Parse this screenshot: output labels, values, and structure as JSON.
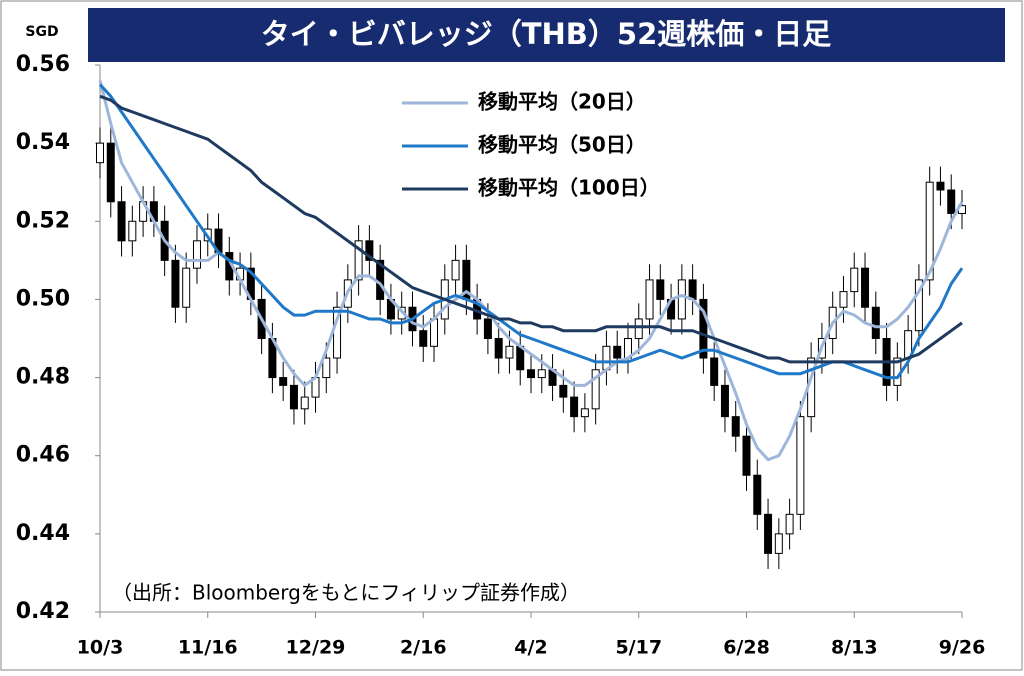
{
  "chart_data": {
    "type": "candlestick",
    "title": "タイ・ビバレッジ（THB）52週株価・日足",
    "ylabel": "SGD",
    "note": "（出所：Bloombergをもとにフィリップ証券作成）",
    "categories": [
      "10/3",
      null,
      null,
      null,
      null,
      null,
      null,
      null,
      null,
      null,
      "11/16",
      null,
      null,
      null,
      null,
      null,
      null,
      null,
      null,
      null,
      "12/29",
      null,
      null,
      null,
      null,
      null,
      null,
      null,
      null,
      null,
      "2/16",
      null,
      null,
      null,
      null,
      null,
      null,
      null,
      null,
      null,
      "4/2",
      null,
      null,
      null,
      null,
      null,
      null,
      null,
      null,
      null,
      "5/17",
      null,
      null,
      null,
      null,
      null,
      null,
      null,
      null,
      null,
      "6/28",
      null,
      null,
      null,
      null,
      null,
      null,
      null,
      null,
      null,
      "8/13",
      null,
      null,
      null,
      null,
      null,
      null,
      null,
      null,
      null,
      "9/26"
    ],
    "open": [
      0.535,
      0.54,
      0.525,
      0.515,
      0.52,
      0.525,
      0.52,
      0.51,
      0.498,
      0.508,
      0.515,
      0.518,
      0.512,
      0.505,
      0.508,
      0.5,
      0.49,
      0.48,
      0.478,
      0.472,
      0.475,
      0.48,
      0.485,
      0.498,
      0.505,
      0.515,
      0.51,
      0.5,
      0.495,
      0.498,
      0.492,
      0.488,
      0.495,
      0.505,
      0.51,
      0.5,
      0.495,
      0.49,
      0.485,
      0.488,
      0.482,
      0.48,
      0.482,
      0.478,
      0.475,
      0.47,
      0.472,
      0.482,
      0.488,
      0.485,
      0.49,
      0.495,
      0.505,
      0.5,
      0.495,
      0.505,
      0.5,
      0.485,
      0.478,
      0.47,
      0.465,
      0.455,
      0.445,
      0.435,
      0.44,
      0.445,
      0.47,
      0.485,
      0.49,
      0.498,
      0.502,
      0.508,
      0.498,
      0.49,
      0.478,
      0.485,
      0.492,
      0.505,
      0.53,
      0.528,
      0.522
    ],
    "high": [
      0.544,
      0.544,
      0.529,
      0.524,
      0.529,
      0.529,
      0.524,
      0.514,
      0.512,
      0.519,
      0.522,
      0.522,
      0.516,
      0.512,
      0.512,
      0.504,
      0.494,
      0.484,
      0.482,
      0.479,
      0.484,
      0.489,
      0.502,
      0.509,
      0.519,
      0.519,
      0.514,
      0.504,
      0.502,
      0.502,
      0.496,
      0.499,
      0.509,
      0.514,
      0.514,
      0.504,
      0.499,
      0.494,
      0.492,
      0.492,
      0.486,
      0.486,
      0.486,
      0.482,
      0.479,
      0.476,
      0.486,
      0.492,
      0.492,
      0.494,
      0.499,
      0.509,
      0.509,
      0.504,
      0.509,
      0.509,
      0.504,
      0.489,
      0.482,
      0.474,
      0.469,
      0.459,
      0.449,
      0.444,
      0.449,
      0.474,
      0.489,
      0.494,
      0.502,
      0.506,
      0.512,
      0.512,
      0.502,
      0.494,
      0.489,
      0.496,
      0.509,
      0.534,
      0.534,
      0.532,
      0.528
    ],
    "low": [
      0.531,
      0.521,
      0.511,
      0.511,
      0.516,
      0.516,
      0.506,
      0.494,
      0.494,
      0.504,
      0.511,
      0.508,
      0.501,
      0.501,
      0.496,
      0.486,
      0.476,
      0.474,
      0.468,
      0.468,
      0.471,
      0.476,
      0.481,
      0.494,
      0.501,
      0.506,
      0.496,
      0.491,
      0.491,
      0.488,
      0.484,
      0.484,
      0.491,
      0.501,
      0.496,
      0.491,
      0.486,
      0.481,
      0.481,
      0.478,
      0.476,
      0.476,
      0.474,
      0.471,
      0.466,
      0.466,
      0.468,
      0.478,
      0.481,
      0.481,
      0.486,
      0.491,
      0.496,
      0.491,
      0.491,
      0.496,
      0.481,
      0.474,
      0.466,
      0.461,
      0.451,
      0.441,
      0.431,
      0.431,
      0.436,
      0.441,
      0.466,
      0.481,
      0.486,
      0.494,
      0.498,
      0.494,
      0.486,
      0.474,
      0.474,
      0.481,
      0.488,
      0.501,
      0.524,
      0.518,
      0.518
    ],
    "close": [
      0.54,
      0.525,
      0.515,
      0.52,
      0.525,
      0.52,
      0.51,
      0.498,
      0.508,
      0.515,
      0.518,
      0.512,
      0.505,
      0.508,
      0.5,
      0.49,
      0.48,
      0.478,
      0.472,
      0.475,
      0.48,
      0.485,
      0.498,
      0.505,
      0.515,
      0.51,
      0.5,
      0.495,
      0.498,
      0.492,
      0.488,
      0.495,
      0.505,
      0.51,
      0.5,
      0.495,
      0.49,
      0.485,
      0.488,
      0.482,
      0.48,
      0.482,
      0.478,
      0.475,
      0.47,
      0.472,
      0.482,
      0.488,
      0.485,
      0.49,
      0.495,
      0.505,
      0.5,
      0.495,
      0.505,
      0.5,
      0.485,
      0.478,
      0.47,
      0.465,
      0.455,
      0.445,
      0.435,
      0.44,
      0.445,
      0.47,
      0.485,
      0.49,
      0.498,
      0.502,
      0.508,
      0.498,
      0.49,
      0.478,
      0.485,
      0.492,
      0.505,
      0.53,
      0.528,
      0.522,
      0.524
    ],
    "series": [
      {
        "name": "移動平均（20日）",
        "color": "#9db6da",
        "values": [
          0.556,
          0.545,
          0.535,
          0.53,
          0.525,
          0.52,
          0.515,
          0.512,
          0.51,
          0.51,
          0.51,
          0.512,
          0.51,
          0.505,
          0.5,
          0.495,
          0.49,
          0.485,
          0.481,
          0.478,
          0.48,
          0.487,
          0.495,
          0.502,
          0.506,
          0.506,
          0.504,
          0.5,
          0.497,
          0.494,
          0.493,
          0.495,
          0.498,
          0.5,
          0.502,
          0.5,
          0.497,
          0.493,
          0.49,
          0.488,
          0.486,
          0.484,
          0.482,
          0.48,
          0.478,
          0.478,
          0.48,
          0.482,
          0.484,
          0.485,
          0.487,
          0.49,
          0.495,
          0.5,
          0.501,
          0.5,
          0.497,
          0.49,
          0.483,
          0.476,
          0.468,
          0.462,
          0.459,
          0.46,
          0.465,
          0.472,
          0.48,
          0.488,
          0.494,
          0.497,
          0.496,
          0.494,
          0.493,
          0.493,
          0.495,
          0.498,
          0.502,
          0.507,
          0.513,
          0.52,
          0.525
        ]
      },
      {
        "name": "移動平均（50日）",
        "color": "#1f78c8",
        "values": [
          0.555,
          0.552,
          0.548,
          0.544,
          0.54,
          0.536,
          0.532,
          0.528,
          0.524,
          0.52,
          0.516,
          0.512,
          0.51,
          0.509,
          0.507,
          0.504,
          0.501,
          0.498,
          0.496,
          0.496,
          0.497,
          0.497,
          0.497,
          0.497,
          0.496,
          0.495,
          0.495,
          0.494,
          0.494,
          0.495,
          0.497,
          0.499,
          0.5,
          0.501,
          0.5,
          0.499,
          0.497,
          0.495,
          0.493,
          0.491,
          0.49,
          0.489,
          0.488,
          0.487,
          0.486,
          0.485,
          0.484,
          0.484,
          0.484,
          0.484,
          0.485,
          0.486,
          0.487,
          0.486,
          0.485,
          0.486,
          0.487,
          0.487,
          0.486,
          0.485,
          0.484,
          0.483,
          0.482,
          0.481,
          0.481,
          0.481,
          0.482,
          0.483,
          0.484,
          0.484,
          0.483,
          0.482,
          0.481,
          0.48,
          0.48,
          0.484,
          0.49,
          0.494,
          0.498,
          0.504,
          0.508
        ]
      },
      {
        "name": "移動平均（100日）",
        "color": "#1f3a5f",
        "values": [
          0.552,
          0.551,
          0.549,
          0.548,
          0.547,
          0.546,
          0.545,
          0.544,
          0.543,
          0.542,
          0.541,
          0.539,
          0.537,
          0.535,
          0.533,
          0.53,
          0.528,
          0.526,
          0.524,
          0.522,
          0.521,
          0.519,
          0.517,
          0.515,
          0.513,
          0.511,
          0.509,
          0.507,
          0.505,
          0.503,
          0.502,
          0.501,
          0.5,
          0.499,
          0.498,
          0.497,
          0.496,
          0.495,
          0.495,
          0.494,
          0.494,
          0.493,
          0.493,
          0.492,
          0.492,
          0.492,
          0.492,
          0.493,
          0.493,
          0.493,
          0.493,
          0.493,
          0.493,
          0.492,
          0.492,
          0.492,
          0.491,
          0.49,
          0.489,
          0.488,
          0.487,
          0.486,
          0.485,
          0.485,
          0.484,
          0.484,
          0.484,
          0.484,
          0.484,
          0.484,
          0.484,
          0.484,
          0.484,
          0.484,
          0.484,
          0.485,
          0.486,
          0.488,
          0.49,
          0.492,
          0.494
        ]
      }
    ],
    "up_color": "#ffffff",
    "down_color": "#000000",
    "ylim": [
      0.42,
      0.56
    ],
    "yticks": [
      0.42,
      0.44,
      0.46,
      0.48,
      {
        "value": 0.5,
        "label": "0.50"
      },
      0.52,
      0.54,
      0.56
    ],
    "grid": false
  }
}
